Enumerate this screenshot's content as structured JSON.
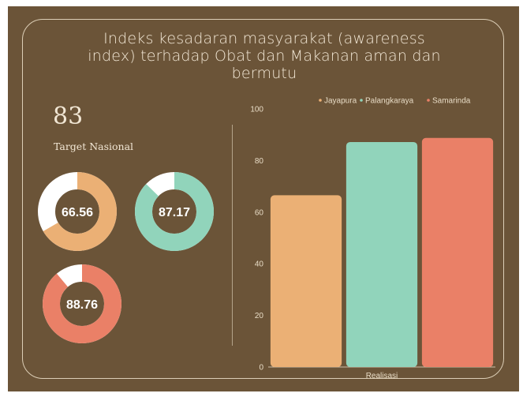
{
  "title": "Indeks kesadaran masyarakat (awareness index) terhadap Obat dan Makanan aman dan bermutu",
  "target": {
    "value": "83",
    "label": "Target Nasional"
  },
  "colors": {
    "background": "#6b5438",
    "Jayapura": "#ebb075",
    "Palangkaraya": "#91d4bb",
    "Samarinda": "#ea8067",
    "donut_remainder": "#ffffff"
  },
  "donuts": [
    {
      "city": "Jayapura",
      "label": "66.56",
      "value": 66.56
    },
    {
      "city": "Palangkaraya",
      "label": "87.17",
      "value": 87.17
    },
    {
      "city": "Samarinda",
      "label": "88.76",
      "value": 88.76
    }
  ],
  "chart_data": {
    "type": "bar",
    "categories": [
      "Realisasi"
    ],
    "series": [
      {
        "name": "Jayapura",
        "values": [
          66.56
        ]
      },
      {
        "name": "Palangkaraya",
        "values": [
          87.17
        ]
      },
      {
        "name": "Samarinda",
        "values": [
          88.76
        ]
      }
    ],
    "ylim": [
      0,
      100
    ],
    "yticks": [
      "0",
      "20",
      "40",
      "60",
      "80",
      "100"
    ],
    "legend": "top",
    "grid": false
  }
}
